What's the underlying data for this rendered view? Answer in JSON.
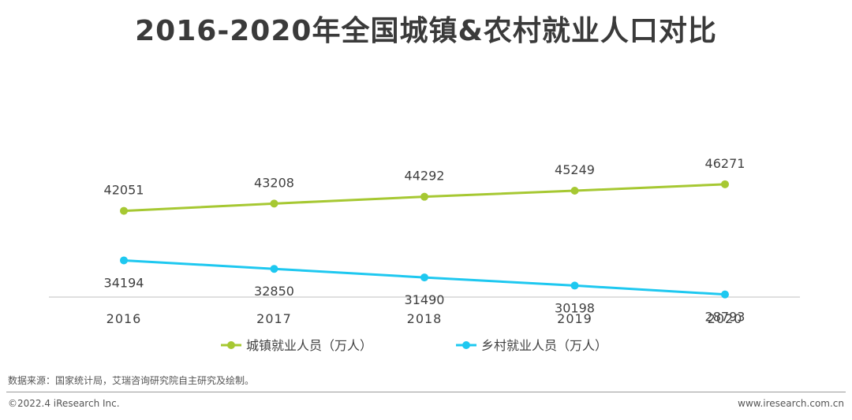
{
  "title": "2016-2020年全国城镇&农村就业人口对比",
  "chart_data": {
    "type": "line",
    "title": "2016-2020年全国城镇&农村就业人口对比",
    "categories": [
      "2016",
      "2017",
      "2018",
      "2019",
      "2020"
    ],
    "series": [
      {
        "name": "城镇就业人员（万人）",
        "color": "#a6c832",
        "values": [
          42051,
          43208,
          44292,
          45249,
          46271
        ],
        "label_position": "above"
      },
      {
        "name": "乡村就业人员（万人）",
        "color": "#1ec8f0",
        "values": [
          34194,
          32850,
          31490,
          30198,
          28793
        ],
        "label_position": "below"
      }
    ],
    "ylim": [
      10000,
      70000
    ],
    "xlabel": "",
    "ylabel": "",
    "grid": false,
    "legend": "bottom-center"
  },
  "footer": {
    "source": "数据来源：国家统计局，艾瑞咨询研究院自主研究及绘制。",
    "copyright": "©2022.4 iResearch Inc.",
    "website": "www.iresearch.com.cn"
  }
}
